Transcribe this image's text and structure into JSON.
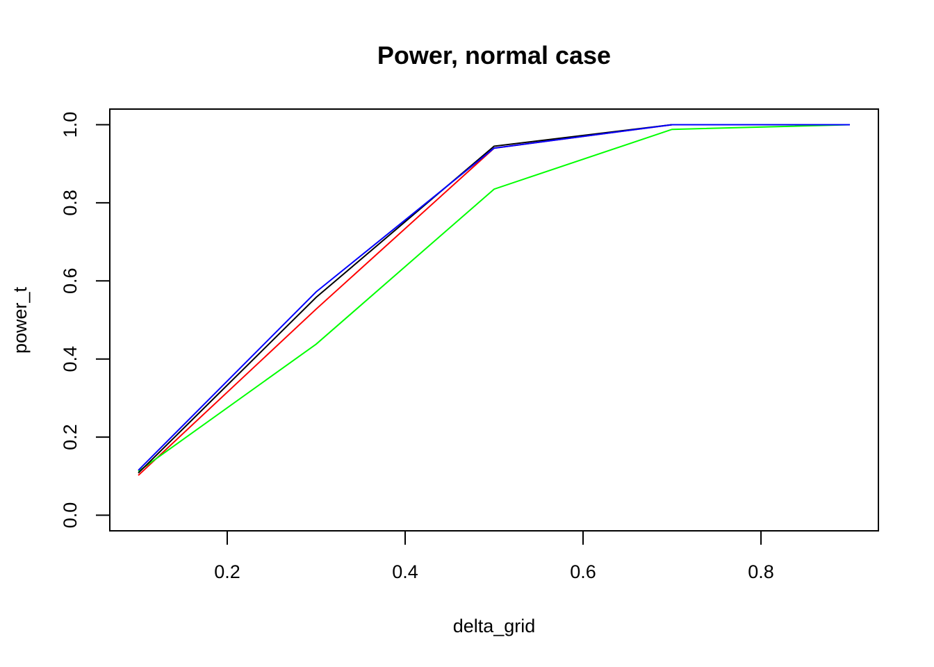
{
  "chart_data": {
    "type": "line",
    "title": "Power, normal case",
    "xlabel": "delta_grid",
    "ylabel": "power_t",
    "x": [
      0.1,
      0.3,
      0.5,
      0.7,
      0.9
    ],
    "xlim": [
      0.068,
      0.932
    ],
    "ylim": [
      -0.04,
      1.04
    ],
    "x_ticks": [
      0.2,
      0.4,
      0.6,
      0.8
    ],
    "x_tick_labels": [
      "0.2",
      "0.4",
      "0.6",
      "0.8"
    ],
    "y_ticks": [
      0.0,
      0.2,
      0.4,
      0.6,
      0.8,
      1.0
    ],
    "y_tick_labels": [
      "0.0",
      "0.2",
      "0.4",
      "0.6",
      "0.8",
      "1.0"
    ],
    "grid": false,
    "legend": "none",
    "series": [
      {
        "color": "#ff0000",
        "values": [
          0.102,
          0.528,
          0.94,
          1.0,
          1.0
        ]
      },
      {
        "color": "#00ff00",
        "values": [
          0.112,
          0.438,
          0.835,
          0.988,
          1.0
        ]
      },
      {
        "color": "#000000",
        "values": [
          0.108,
          0.558,
          0.945,
          1.0,
          1.0
        ]
      },
      {
        "color": "#0000ff",
        "values": [
          0.115,
          0.572,
          0.94,
          1.0,
          1.0
        ]
      }
    ]
  }
}
